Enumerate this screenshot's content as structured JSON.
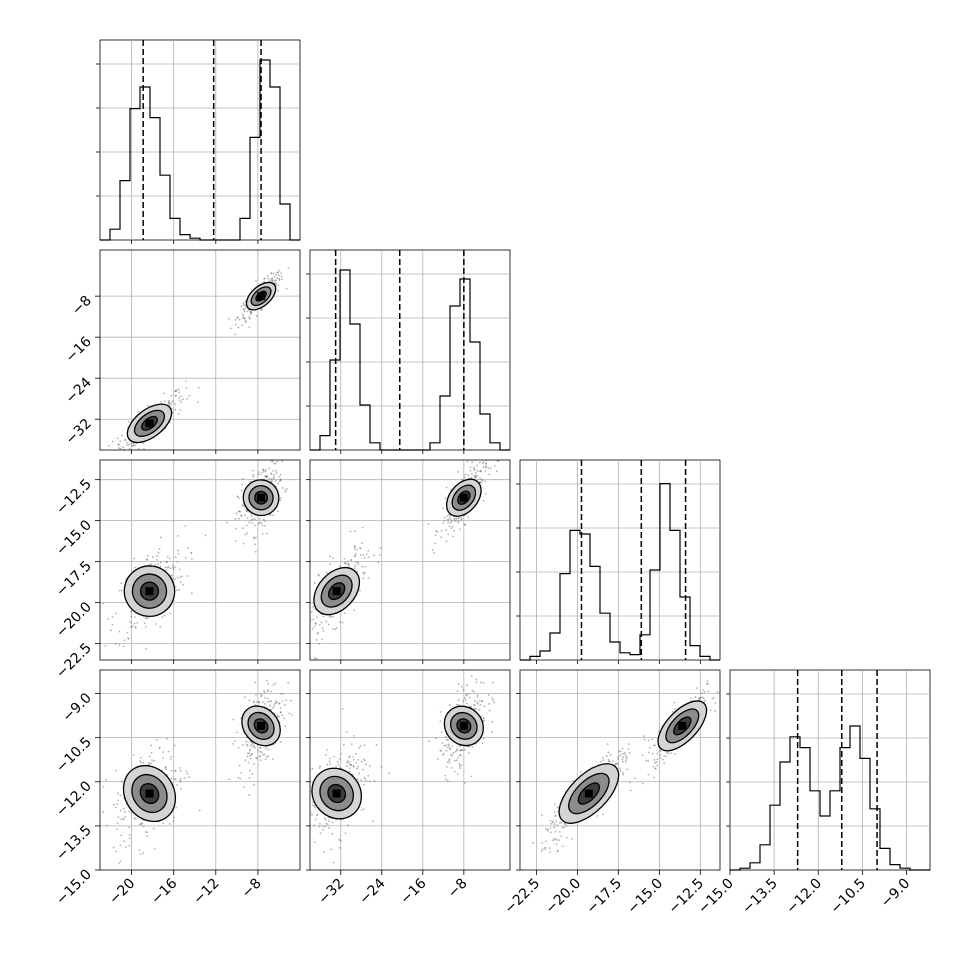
{
  "chart_data": {
    "type": "corner",
    "n_params": 4,
    "params": [
      {
        "range": [
          -23,
          -4
        ],
        "ticks": [
          -20,
          -16,
          -12,
          -8
        ],
        "tick_labels": [
          "−20",
          "−16",
          "−12",
          "−8"
        ],
        "quantiles": [
          -18.9,
          -12.2,
          -7.7
        ],
        "modes": [
          -18.3,
          -7.7
        ],
        "hist": [
          0.0,
          0.06,
          0.33,
          0.73,
          0.85,
          0.68,
          0.36,
          0.12,
          0.03,
          0.01,
          0.0,
          0.0,
          0.0,
          0.0,
          0.12,
          0.57,
          1.0,
          0.85,
          0.2,
          0.0
        ]
      },
      {
        "range": [
          -38,
          1
        ],
        "ticks": [
          -32,
          -24,
          -16,
          -8
        ],
        "tick_labels": [
          "−32",
          "−24",
          "−16",
          "−8"
        ],
        "quantiles": [
          -33.0,
          -20.5,
          -8.0
        ],
        "modes": [
          -32.8,
          -8.0
        ],
        "hist": [
          0.0,
          0.08,
          0.5,
          1.0,
          0.7,
          0.25,
          0.04,
          0.0,
          0.0,
          0.0,
          0.0,
          0.0,
          0.04,
          0.3,
          0.8,
          0.95,
          0.6,
          0.2,
          0.04,
          0.0
        ]
      },
      {
        "range": [
          -23.5,
          -11.3
        ],
        "ticks": [
          -22.5,
          -20.0,
          -17.5,
          -15.0,
          -12.5
        ],
        "tick_labels": [
          "−22.5",
          "−20.0",
          "−17.5",
          "−15.0",
          "−12.5"
        ],
        "quantiles": [
          -19.75,
          -16.1,
          -13.4
        ],
        "modes": [
          -19.3,
          -13.6
        ],
        "hist": [
          0.0,
          0.02,
          0.05,
          0.15,
          0.48,
          0.72,
          0.7,
          0.52,
          0.26,
          0.1,
          0.04,
          0.03,
          0.14,
          0.5,
          0.98,
          0.72,
          0.35,
          0.08,
          0.02,
          0.0
        ]
      },
      {
        "range": [
          -15.0,
          -8.2
        ],
        "ticks": [
          -15.0,
          -13.5,
          -12.0,
          -10.5,
          -9.0
        ],
        "tick_labels": [
          "−15.0",
          "−13.5",
          "−12.0",
          "−10.5",
          "−9.0"
        ],
        "quantiles": [
          -12.7,
          -11.2,
          -10.0
        ],
        "modes": [
          -12.4,
          -10.1
        ],
        "hist": [
          0.0,
          0.01,
          0.04,
          0.14,
          0.36,
          0.6,
          0.74,
          0.68,
          0.44,
          0.3,
          0.44,
          0.68,
          0.8,
          0.62,
          0.34,
          0.12,
          0.03,
          0.01,
          0.0,
          0.0
        ]
      }
    ],
    "grid": true,
    "title": "",
    "xlabel": "",
    "ylabel": "",
    "colors": {
      "ink": "#000000",
      "grid": "#b0b0b0",
      "scatter": "#555555",
      "fill_light": "#d4d4d4",
      "fill_mid": "#8c8c8c",
      "fill_dark": "#3c3c3c",
      "fill_core": "#000000"
    }
  }
}
